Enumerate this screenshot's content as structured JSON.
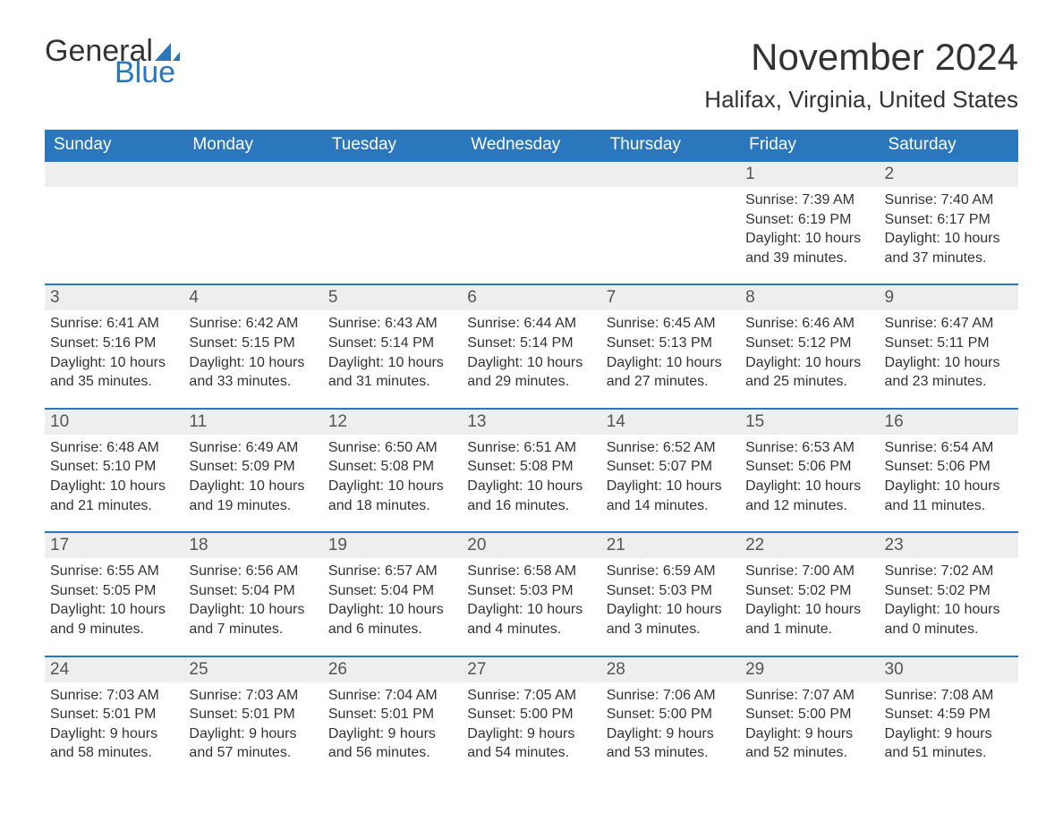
{
  "logo": {
    "text1": "General",
    "text2": "Blue",
    "sail_color": "#2b77bd"
  },
  "title": "November 2024",
  "location": "Halifax, Virginia, United States",
  "colors": {
    "header_bg": "#2b77bd",
    "header_fg": "#ffffff",
    "daynum_bg": "#eeeeee",
    "row_border": "#2b77bd",
    "text": "#333333"
  },
  "fonts": {
    "title_size_pt": 32,
    "location_size_pt": 20,
    "dow_size_pt": 14,
    "daynum_size_pt": 14,
    "body_size_pt": 12
  },
  "days_of_week": [
    "Sunday",
    "Monday",
    "Tuesday",
    "Wednesday",
    "Thursday",
    "Friday",
    "Saturday"
  ],
  "weeks": [
    [
      {
        "blank": true
      },
      {
        "blank": true
      },
      {
        "blank": true
      },
      {
        "blank": true
      },
      {
        "blank": true
      },
      {
        "day": "1",
        "sunrise": "Sunrise: 7:39 AM",
        "sunset": "Sunset: 6:19 PM",
        "daylight1": "Daylight: 10 hours",
        "daylight2": "and 39 minutes."
      },
      {
        "day": "2",
        "sunrise": "Sunrise: 7:40 AM",
        "sunset": "Sunset: 6:17 PM",
        "daylight1": "Daylight: 10 hours",
        "daylight2": "and 37 minutes."
      }
    ],
    [
      {
        "day": "3",
        "sunrise": "Sunrise: 6:41 AM",
        "sunset": "Sunset: 5:16 PM",
        "daylight1": "Daylight: 10 hours",
        "daylight2": "and 35 minutes."
      },
      {
        "day": "4",
        "sunrise": "Sunrise: 6:42 AM",
        "sunset": "Sunset: 5:15 PM",
        "daylight1": "Daylight: 10 hours",
        "daylight2": "and 33 minutes."
      },
      {
        "day": "5",
        "sunrise": "Sunrise: 6:43 AM",
        "sunset": "Sunset: 5:14 PM",
        "daylight1": "Daylight: 10 hours",
        "daylight2": "and 31 minutes."
      },
      {
        "day": "6",
        "sunrise": "Sunrise: 6:44 AM",
        "sunset": "Sunset: 5:14 PM",
        "daylight1": "Daylight: 10 hours",
        "daylight2": "and 29 minutes."
      },
      {
        "day": "7",
        "sunrise": "Sunrise: 6:45 AM",
        "sunset": "Sunset: 5:13 PM",
        "daylight1": "Daylight: 10 hours",
        "daylight2": "and 27 minutes."
      },
      {
        "day": "8",
        "sunrise": "Sunrise: 6:46 AM",
        "sunset": "Sunset: 5:12 PM",
        "daylight1": "Daylight: 10 hours",
        "daylight2": "and 25 minutes."
      },
      {
        "day": "9",
        "sunrise": "Sunrise: 6:47 AM",
        "sunset": "Sunset: 5:11 PM",
        "daylight1": "Daylight: 10 hours",
        "daylight2": "and 23 minutes."
      }
    ],
    [
      {
        "day": "10",
        "sunrise": "Sunrise: 6:48 AM",
        "sunset": "Sunset: 5:10 PM",
        "daylight1": "Daylight: 10 hours",
        "daylight2": "and 21 minutes."
      },
      {
        "day": "11",
        "sunrise": "Sunrise: 6:49 AM",
        "sunset": "Sunset: 5:09 PM",
        "daylight1": "Daylight: 10 hours",
        "daylight2": "and 19 minutes."
      },
      {
        "day": "12",
        "sunrise": "Sunrise: 6:50 AM",
        "sunset": "Sunset: 5:08 PM",
        "daylight1": "Daylight: 10 hours",
        "daylight2": "and 18 minutes."
      },
      {
        "day": "13",
        "sunrise": "Sunrise: 6:51 AM",
        "sunset": "Sunset: 5:08 PM",
        "daylight1": "Daylight: 10 hours",
        "daylight2": "and 16 minutes."
      },
      {
        "day": "14",
        "sunrise": "Sunrise: 6:52 AM",
        "sunset": "Sunset: 5:07 PM",
        "daylight1": "Daylight: 10 hours",
        "daylight2": "and 14 minutes."
      },
      {
        "day": "15",
        "sunrise": "Sunrise: 6:53 AM",
        "sunset": "Sunset: 5:06 PM",
        "daylight1": "Daylight: 10 hours",
        "daylight2": "and 12 minutes."
      },
      {
        "day": "16",
        "sunrise": "Sunrise: 6:54 AM",
        "sunset": "Sunset: 5:06 PM",
        "daylight1": "Daylight: 10 hours",
        "daylight2": "and 11 minutes."
      }
    ],
    [
      {
        "day": "17",
        "sunrise": "Sunrise: 6:55 AM",
        "sunset": "Sunset: 5:05 PM",
        "daylight1": "Daylight: 10 hours",
        "daylight2": "and 9 minutes."
      },
      {
        "day": "18",
        "sunrise": "Sunrise: 6:56 AM",
        "sunset": "Sunset: 5:04 PM",
        "daylight1": "Daylight: 10 hours",
        "daylight2": "and 7 minutes."
      },
      {
        "day": "19",
        "sunrise": "Sunrise: 6:57 AM",
        "sunset": "Sunset: 5:04 PM",
        "daylight1": "Daylight: 10 hours",
        "daylight2": "and 6 minutes."
      },
      {
        "day": "20",
        "sunrise": "Sunrise: 6:58 AM",
        "sunset": "Sunset: 5:03 PM",
        "daylight1": "Daylight: 10 hours",
        "daylight2": "and 4 minutes."
      },
      {
        "day": "21",
        "sunrise": "Sunrise: 6:59 AM",
        "sunset": "Sunset: 5:03 PM",
        "daylight1": "Daylight: 10 hours",
        "daylight2": "and 3 minutes."
      },
      {
        "day": "22",
        "sunrise": "Sunrise: 7:00 AM",
        "sunset": "Sunset: 5:02 PM",
        "daylight1": "Daylight: 10 hours",
        "daylight2": "and 1 minute."
      },
      {
        "day": "23",
        "sunrise": "Sunrise: 7:02 AM",
        "sunset": "Sunset: 5:02 PM",
        "daylight1": "Daylight: 10 hours",
        "daylight2": "and 0 minutes."
      }
    ],
    [
      {
        "day": "24",
        "sunrise": "Sunrise: 7:03 AM",
        "sunset": "Sunset: 5:01 PM",
        "daylight1": "Daylight: 9 hours",
        "daylight2": "and 58 minutes."
      },
      {
        "day": "25",
        "sunrise": "Sunrise: 7:03 AM",
        "sunset": "Sunset: 5:01 PM",
        "daylight1": "Daylight: 9 hours",
        "daylight2": "and 57 minutes."
      },
      {
        "day": "26",
        "sunrise": "Sunrise: 7:04 AM",
        "sunset": "Sunset: 5:01 PM",
        "daylight1": "Daylight: 9 hours",
        "daylight2": "and 56 minutes."
      },
      {
        "day": "27",
        "sunrise": "Sunrise: 7:05 AM",
        "sunset": "Sunset: 5:00 PM",
        "daylight1": "Daylight: 9 hours",
        "daylight2": "and 54 minutes."
      },
      {
        "day": "28",
        "sunrise": "Sunrise: 7:06 AM",
        "sunset": "Sunset: 5:00 PM",
        "daylight1": "Daylight: 9 hours",
        "daylight2": "and 53 minutes."
      },
      {
        "day": "29",
        "sunrise": "Sunrise: 7:07 AM",
        "sunset": "Sunset: 5:00 PM",
        "daylight1": "Daylight: 9 hours",
        "daylight2": "and 52 minutes."
      },
      {
        "day": "30",
        "sunrise": "Sunrise: 7:08 AM",
        "sunset": "Sunset: 4:59 PM",
        "daylight1": "Daylight: 9 hours",
        "daylight2": "and 51 minutes."
      }
    ]
  ]
}
